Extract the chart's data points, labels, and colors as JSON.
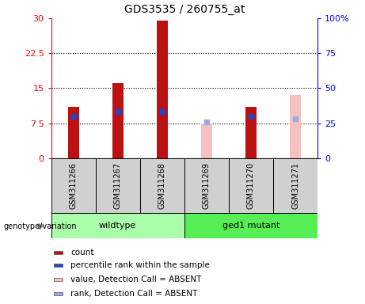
{
  "title": "GDS3535 / 260755_at",
  "samples": [
    "GSM311266",
    "GSM311267",
    "GSM311268",
    "GSM311269",
    "GSM311270",
    "GSM311271"
  ],
  "count_values": [
    11.0,
    16.0,
    29.5,
    null,
    11.0,
    null
  ],
  "rank_values_left": [
    9.0,
    10.0,
    10.0,
    null,
    9.0,
    null
  ],
  "count_absent": [
    null,
    null,
    null,
    7.5,
    null,
    13.5
  ],
  "rank_absent_left": [
    null,
    null,
    null,
    7.7,
    null,
    8.5
  ],
  "ylim_left": [
    0,
    30
  ],
  "ylim_right": [
    0,
    100
  ],
  "yticks_left": [
    0,
    7.5,
    15,
    22.5,
    30
  ],
  "yticks_right": [
    0,
    25,
    50,
    75,
    100
  ],
  "ytick_labels_left": [
    "0",
    "7.5",
    "15",
    "22.5",
    "30"
  ],
  "ytick_labels_right": [
    "0",
    "25",
    "50",
    "75",
    "100%"
  ],
  "bar_color_present": "#bb1111",
  "bar_color_absent": "#f5c0c0",
  "rank_color_present": "#2244cc",
  "rank_color_absent": "#9aaae8",
  "bar_width": 0.25,
  "wt_color": "#aaffaa",
  "ged_color": "#55ee55",
  "legend_items": [
    {
      "color": "#bb1111",
      "label": "count"
    },
    {
      "color": "#2244cc",
      "label": "percentile rank within the sample"
    },
    {
      "color": "#f5c0c0",
      "label": "value, Detection Call = ABSENT"
    },
    {
      "color": "#9aaae8",
      "label": "rank, Detection Call = ABSENT"
    }
  ]
}
